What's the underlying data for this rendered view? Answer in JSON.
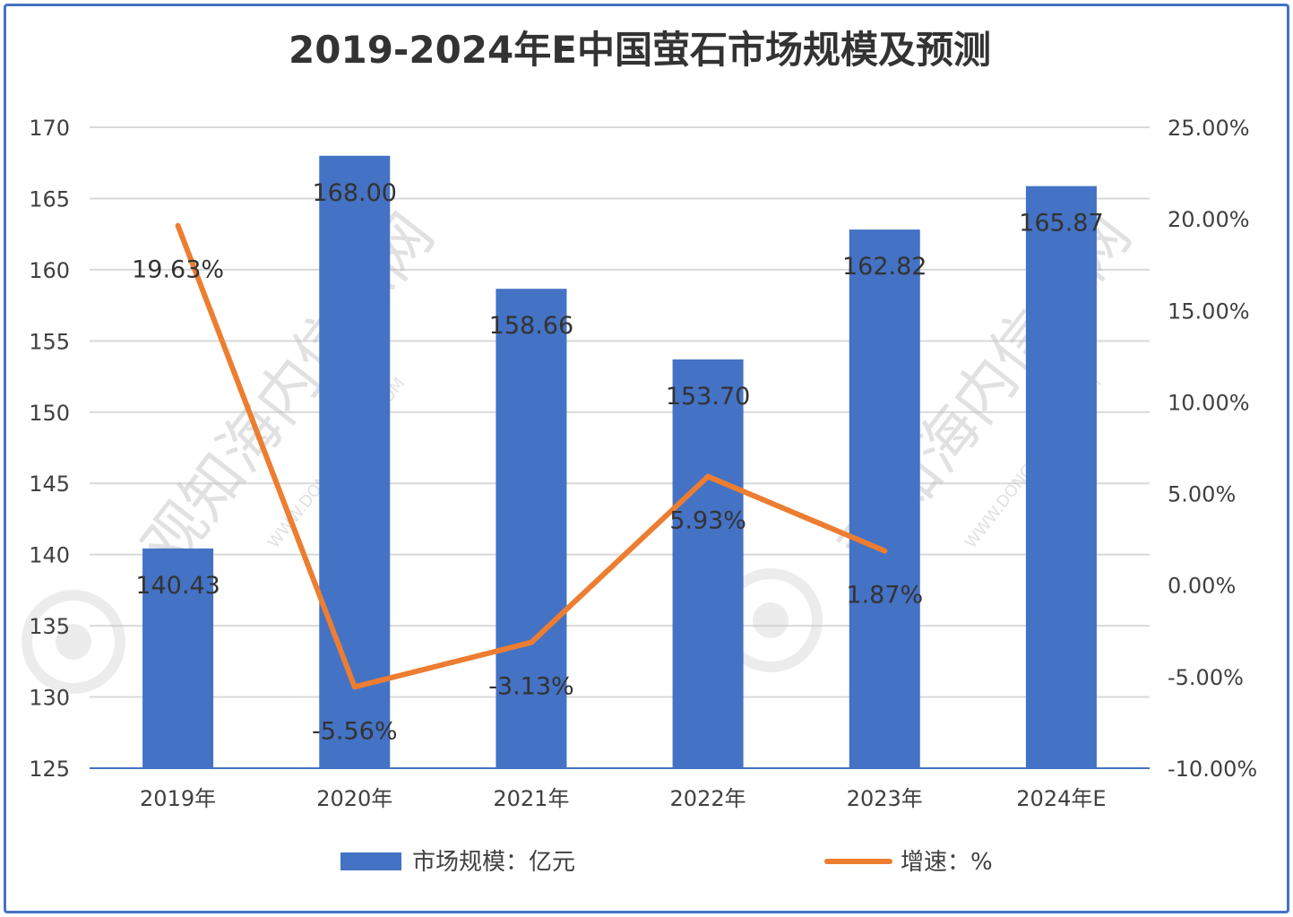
{
  "chart_data": {
    "type": "bar",
    "title": "2019-2024年E中国萤石市场规模及预测",
    "categories": [
      "2019年",
      "2020年",
      "2021年",
      "2022年",
      "2023年",
      "2024年E"
    ],
    "series": [
      {
        "name": "市场规模：亿元",
        "type": "bar",
        "axis": "left",
        "values": [
          140.43,
          168.0,
          158.66,
          153.7,
          162.82,
          165.87
        ],
        "labels": [
          "140.43",
          "168.00",
          "158.66",
          "153.70",
          "162.82",
          "165.87"
        ],
        "color": "#4472c4"
      },
      {
        "name": "增速：%",
        "type": "line",
        "axis": "right",
        "values": [
          19.63,
          -5.56,
          -3.13,
          5.93,
          1.87,
          null
        ],
        "labels": [
          "19.63%",
          "-5.56%",
          "-3.13%",
          "5.93%",
          "1.87%",
          ""
        ],
        "color": "#ed7d31"
      }
    ],
    "y_left": {
      "ylim": [
        125,
        170
      ],
      "ticks": [
        170,
        165,
        160,
        155,
        150,
        145,
        140,
        135,
        130,
        125
      ],
      "tick_labels": [
        "170",
        "165",
        "160",
        "155",
        "150",
        "145",
        "140",
        "135",
        "130",
        "125"
      ]
    },
    "y_right": {
      "ylim": [
        -10,
        25
      ],
      "ticks": [
        25,
        20,
        15,
        10,
        5,
        0,
        -5,
        -10
      ],
      "tick_labels": [
        "25.00%",
        "20.00%",
        "15.00%",
        "10.00%",
        "5.00%",
        "0.00%",
        "-5.00%",
        "-10.00%"
      ]
    },
    "grid": true,
    "legend_position": "bottom"
  },
  "watermark": {
    "text": "观知海内信息网",
    "subtext": "WWW.DONGFANGQB.COM"
  }
}
